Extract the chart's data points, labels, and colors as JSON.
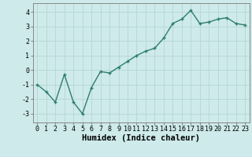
{
  "x": [
    0,
    1,
    2,
    3,
    4,
    5,
    6,
    7,
    8,
    9,
    10,
    11,
    12,
    13,
    14,
    15,
    16,
    17,
    18,
    19,
    20,
    21,
    22,
    23
  ],
  "y": [
    -1.0,
    -1.5,
    -2.2,
    -0.3,
    -2.2,
    -3.0,
    -1.2,
    -0.1,
    -0.2,
    0.2,
    0.6,
    1.0,
    1.3,
    1.5,
    2.2,
    3.2,
    3.5,
    4.1,
    3.2,
    3.3,
    3.5,
    3.6,
    3.2,
    3.1
  ],
  "line_color": "#2e7d6e",
  "marker": "+",
  "marker_size": 3.5,
  "marker_edge_width": 1.0,
  "bg_color": "#ceeaea",
  "grid_color": "#b8d8d8",
  "xlabel": "Humidex (Indice chaleur)",
  "xlim": [
    -0.5,
    23.5
  ],
  "ylim": [
    -3.6,
    4.6
  ],
  "yticks": [
    -3,
    -2,
    -1,
    0,
    1,
    2,
    3,
    4
  ],
  "xticks": [
    0,
    1,
    2,
    3,
    4,
    5,
    6,
    7,
    8,
    9,
    10,
    11,
    12,
    13,
    14,
    15,
    16,
    17,
    18,
    19,
    20,
    21,
    22,
    23
  ],
  "tick_label_fontsize": 6.0,
  "xlabel_fontsize": 7.5,
  "line_width": 1.0
}
